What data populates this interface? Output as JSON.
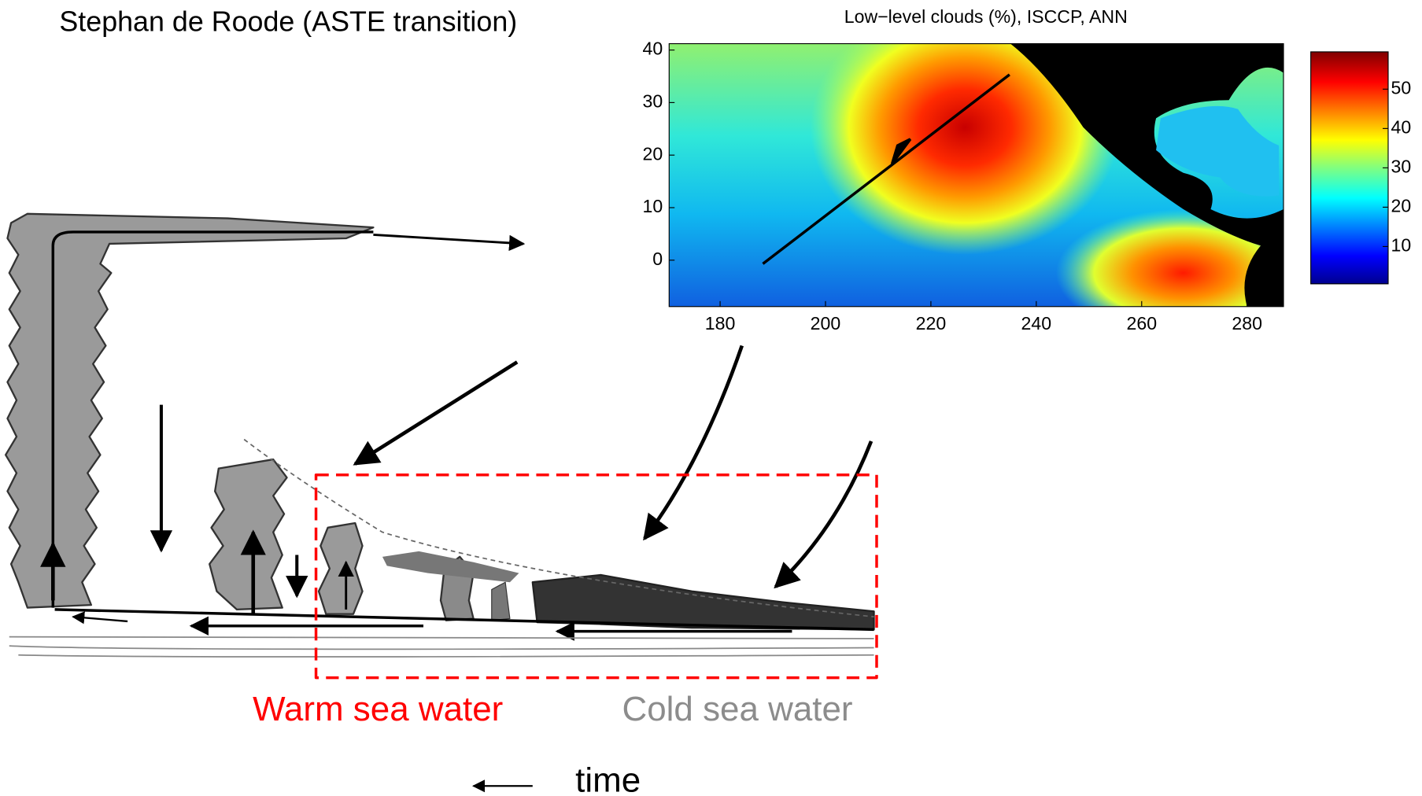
{
  "header": {
    "title": "Stephan de Roode (ASTE transition)"
  },
  "map": {
    "title": "Low−level clouds (%), ISCCP, ANN",
    "xticks": [
      180,
      200,
      220,
      240,
      260,
      280
    ],
    "yticks": [
      0,
      10,
      20,
      30,
      40
    ],
    "colorbar_ticks": [
      10,
      20,
      30,
      40,
      50
    ]
  },
  "labels": {
    "warm": "Warm sea water",
    "cold": "Cold sea water",
    "time": "time"
  }
}
